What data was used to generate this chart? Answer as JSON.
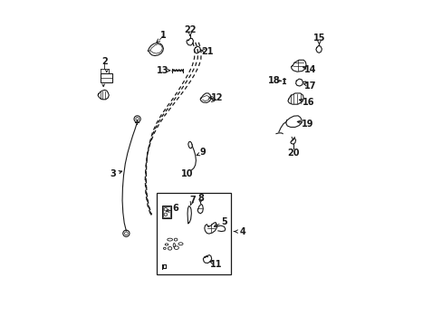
{
  "bg_color": "#ffffff",
  "line_color": "#1a1a1a",
  "fig_width": 4.89,
  "fig_height": 3.6,
  "dpi": 100,
  "parts": {
    "door_outer": {
      "x": [
        0.37,
        0.355,
        0.34,
        0.328,
        0.318,
        0.308,
        0.3,
        0.295,
        0.292,
        0.293,
        0.298,
        0.308,
        0.325,
        0.348,
        0.372,
        0.395,
        0.415,
        0.43,
        0.44,
        0.445,
        0.442,
        0.432,
        0.42,
        0.408,
        0.395,
        0.382,
        0.368,
        0.355,
        0.342,
        0.33
      ],
      "y": [
        0.885,
        0.882,
        0.874,
        0.862,
        0.848,
        0.83,
        0.808,
        0.782,
        0.75,
        0.712,
        0.67,
        0.63,
        0.595,
        0.568,
        0.55,
        0.545,
        0.548,
        0.555,
        0.565,
        0.578,
        0.595,
        0.615,
        0.638,
        0.66,
        0.682,
        0.705,
        0.728,
        0.752,
        0.775,
        0.8
      ]
    },
    "door_inner1": {
      "x": [
        0.362,
        0.348,
        0.335,
        0.323,
        0.314,
        0.306,
        0.3,
        0.296,
        0.295,
        0.296,
        0.302,
        0.312,
        0.328,
        0.348,
        0.368,
        0.388,
        0.405,
        0.418,
        0.428,
        0.432,
        0.43,
        0.422,
        0.412,
        0.4,
        0.388,
        0.376,
        0.363,
        0.35,
        0.338
      ],
      "y": [
        0.882,
        0.878,
        0.87,
        0.858,
        0.844,
        0.826,
        0.804,
        0.778,
        0.748,
        0.714,
        0.676,
        0.638,
        0.604,
        0.578,
        0.56,
        0.552,
        0.552,
        0.556,
        0.564,
        0.575,
        0.59,
        0.608,
        0.628,
        0.65,
        0.672,
        0.695,
        0.718,
        0.742,
        0.766
      ]
    },
    "door_inner2": {
      "x": [
        0.355,
        0.342,
        0.33,
        0.319,
        0.311,
        0.304,
        0.299,
        0.296,
        0.295,
        0.297,
        0.303,
        0.314,
        0.33,
        0.35,
        0.37,
        0.388,
        0.402,
        0.413,
        0.42,
        0.424,
        0.422,
        0.414,
        0.404,
        0.393,
        0.382,
        0.37,
        0.358,
        0.346
      ],
      "y": [
        0.88,
        0.876,
        0.868,
        0.856,
        0.842,
        0.824,
        0.803,
        0.778,
        0.75,
        0.718,
        0.682,
        0.646,
        0.614,
        0.588,
        0.57,
        0.56,
        0.558,
        0.56,
        0.567,
        0.578,
        0.592,
        0.61,
        0.63,
        0.652,
        0.675,
        0.698,
        0.722,
        0.746
      ]
    }
  }
}
